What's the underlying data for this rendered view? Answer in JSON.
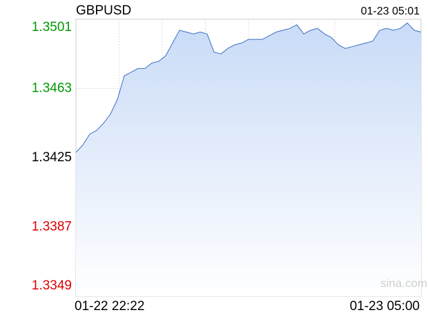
{
  "chart_data": {
    "type": "area",
    "title": "GBPUSD",
    "timestamp": "01-23 05:01",
    "watermark": "sina.com",
    "categories": [
      "01-22 22:22",
      null,
      null,
      null,
      null,
      null,
      null,
      null,
      null,
      null,
      null,
      null,
      null,
      null,
      null,
      null,
      null,
      null,
      null,
      null,
      null,
      null,
      null,
      null,
      null,
      null,
      null,
      null,
      null,
      null,
      null,
      null,
      null,
      null,
      null,
      null,
      null,
      null,
      null,
      null,
      null,
      null,
      null,
      null,
      null,
      null,
      null,
      null,
      null,
      null,
      "01-23 05:00"
    ],
    "values": [
      1.3428,
      1.3432,
      1.3438,
      1.344,
      1.3444,
      1.3449,
      1.3457,
      1.347,
      1.3472,
      1.3474,
      1.3474,
      1.3477,
      1.3478,
      1.3481,
      1.3488,
      1.3495,
      1.3494,
      1.3493,
      1.3494,
      1.3493,
      1.3483,
      1.3482,
      1.3485,
      1.3487,
      1.3488,
      1.349,
      1.349,
      1.349,
      1.3492,
      1.3494,
      1.3495,
      1.3496,
      1.3498,
      1.3493,
      1.3495,
      1.3496,
      1.3493,
      1.3491,
      1.3487,
      1.3485,
      1.3486,
      1.3487,
      1.3488,
      1.3489,
      1.3495,
      1.3496,
      1.3495,
      1.3496,
      1.3499,
      1.3495,
      1.3494
    ],
    "color": "#3a6fc4",
    "ylim": [
      1.3349,
      1.3501
    ],
    "yticks": [
      1.3349,
      1.3387,
      1.3425,
      1.3463,
      1.3501
    ],
    "ytick_colors": [
      "#dd0000",
      "#dd0000",
      "#000000",
      "#009900",
      "#009900"
    ],
    "grid": true
  }
}
